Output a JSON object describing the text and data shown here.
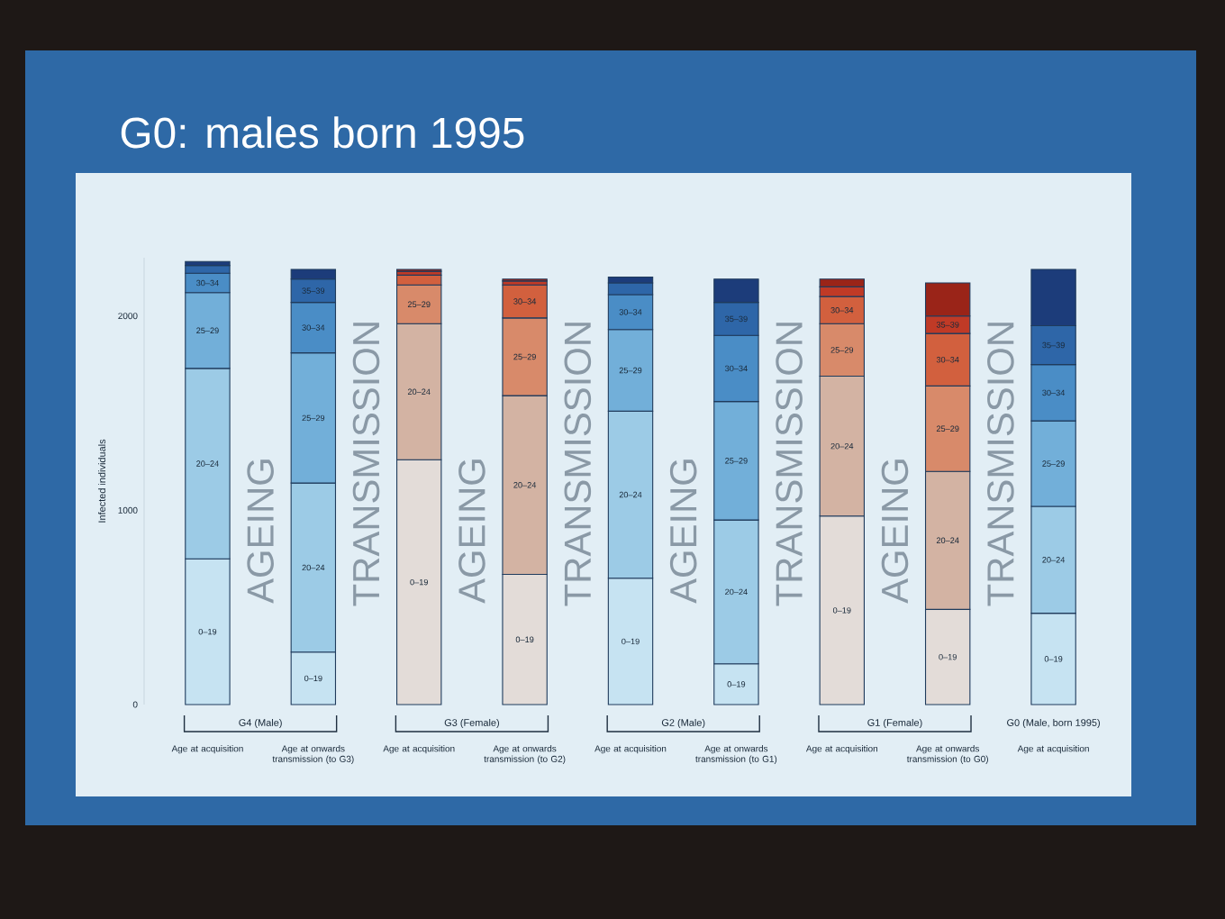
{
  "chart_data": {
    "type": "bar",
    "stacked": true,
    "title": "G0: males born 1995",
    "ylabel": "Infected individuals",
    "categories": [
      "Age at acquisition",
      "Age at onwards transmission (to G3)",
      "Age at acquisition",
      "Age at onwards transmission (to G2)",
      "Age at acquisition",
      "Age at onwards transmission (to G1)",
      "Age at acquisition",
      "Age at onwards transmission (to G0)",
      "Age at acquisition"
    ],
    "series": [
      {
        "name": "0–19",
        "values": [
          750,
          270,
          1260,
          670,
          650,
          210,
          970,
          490,
          470
        ],
        "colors": [
          "#c6e3f2",
          "#c6e3f2",
          "#e3dcd8",
          "#e3dcd8",
          "#c6e3f2",
          "#c6e3f2",
          "#e3dcd8",
          "#e3dcd8",
          "#c6e3f2"
        ]
      },
      {
        "name": "20–24",
        "values": [
          980,
          870,
          700,
          920,
          860,
          740,
          720,
          710,
          550
        ],
        "colors": [
          "#9ccbe6",
          "#9ccbe6",
          "#d3b3a3",
          "#d3b3a3",
          "#9ccbe6",
          "#9ccbe6",
          "#d3b3a3",
          "#d3b3a3",
          "#9ccbe6"
        ]
      },
      {
        "name": "25–29",
        "values": [
          390,
          670,
          200,
          400,
          420,
          610,
          270,
          440,
          440
        ],
        "colors": [
          "#72afd9",
          "#72afd9",
          "#d88a6a",
          "#d88a6a",
          "#72afd9",
          "#72afd9",
          "#d88a6a",
          "#d88a6a",
          "#72afd9"
        ]
      },
      {
        "name": "30–34",
        "values": [
          100,
          260,
          50,
          170,
          180,
          340,
          140,
          270,
          290
        ],
        "colors": [
          "#4a8dc6",
          "#4a8dc6",
          "#d2603e",
          "#d2603e",
          "#4a8dc6",
          "#4a8dc6",
          "#d2603e",
          "#d2603e",
          "#4a8dc6"
        ]
      },
      {
        "name": "35–39",
        "values": [
          40,
          120,
          20,
          20,
          60,
          170,
          50,
          90,
          200
        ],
        "colors": [
          "#2e66a8",
          "#2e66a8",
          "#c03a26",
          "#c03a26",
          "#2e66a8",
          "#2e66a8",
          "#c03a26",
          "#c03a26",
          "#2e66a8"
        ]
      },
      {
        "values": [
          20,
          50,
          10,
          10,
          30,
          120,
          40,
          170,
          290
        ],
        "colors": [
          "#1c3c7a",
          "#1c3c7a",
          "#9a2418",
          "#9a2418",
          "#1c3c7a",
          "#1c3c7a",
          "#9a2418",
          "#9a2418",
          "#1c3c7a"
        ]
      }
    ],
    "ylim": [
      0,
      2300
    ],
    "yticks": [
      0,
      1000,
      2000
    ],
    "annotations": [
      "G4 (Male)",
      "AGEING",
      "TRANSMISSION",
      "G3 (Female)",
      "AGEING",
      "TRANSMISSION",
      "G2 (Male)",
      "AGEING",
      "TRANSMISSION",
      "G1 (Female)",
      "AGEING",
      "TRANSMISSION",
      "G0 (Male, born 1995)"
    ]
  }
}
